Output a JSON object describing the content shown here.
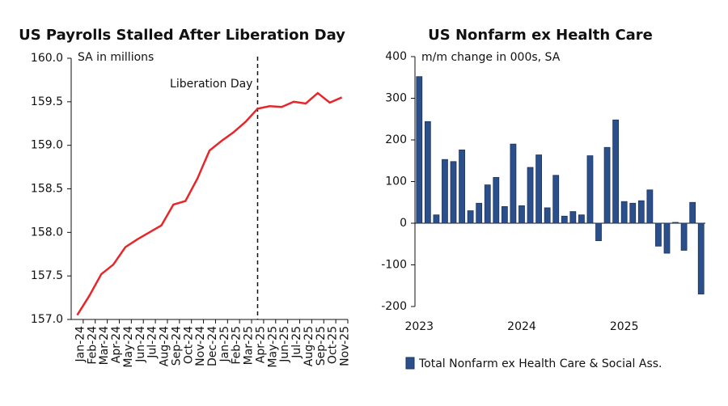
{
  "chart_data": [
    {
      "type": "line",
      "title": "US Payrolls Stalled After Liberation Day",
      "subtitle": "SA in millions",
      "categories": [
        "Jan-24",
        "Feb-24",
        "Mar-24",
        "Apr-24",
        "May-24",
        "Jun-24",
        "Jul-24",
        "Aug-24",
        "Sep-24",
        "Oct-24",
        "Nov-24",
        "Dec-24",
        "Jan-25",
        "Feb-25",
        "Mar-25",
        "Apr-25",
        "May-25",
        "Jun-25",
        "Jul-25",
        "Aug-25",
        "Sep-25",
        "Oct-25",
        "Nov-25"
      ],
      "values": [
        157.05,
        157.27,
        157.52,
        157.63,
        157.83,
        157.92,
        158.0,
        158.08,
        158.32,
        158.36,
        158.62,
        158.94,
        159.05,
        159.15,
        159.27,
        159.42,
        159.45,
        159.44,
        159.5,
        159.48,
        159.6,
        159.49,
        159.55
      ],
      "color": "#e8262a",
      "ylim": [
        157,
        160
      ],
      "yticks": [
        {
          "value": 157,
          "label": "157.0"
        },
        {
          "value": 157.5,
          "label": "157.5"
        },
        {
          "value": 158,
          "label": "158.0"
        },
        {
          "value": 158.5,
          "label": "158.5"
        },
        {
          "value": 159,
          "label": "159.0"
        },
        {
          "value": 159.5,
          "label": "159.5"
        },
        {
          "value": 160,
          "label": "160.0"
        }
      ],
      "annotation": {
        "text": "Liberation Day",
        "at": "Apr-25"
      }
    },
    {
      "type": "bar",
      "title": "US Nonfarm ex Health Care",
      "subtitle": "m/m change in 000s, SA",
      "categories": [
        "2023",
        null,
        null,
        null,
        null,
        null,
        null,
        null,
        null,
        null,
        null,
        null,
        "2024",
        null,
        null,
        null,
        null,
        null,
        null,
        null,
        null,
        null,
        null,
        null,
        "2025",
        null,
        null,
        null,
        null,
        null,
        null,
        null,
        null,
        null
      ],
      "series": [
        {
          "name": "Total Nonfarm ex Health Care & Social Ass.",
          "color": "#2b4f8a",
          "values": [
            352,
            244,
            20,
            153,
            148,
            176,
            30,
            48,
            92,
            110,
            40,
            190,
            42,
            134,
            164,
            37,
            115,
            17,
            28,
            20,
            162,
            -42,
            182,
            248,
            52,
            48,
            54,
            80,
            -55,
            -72,
            2,
            -65,
            50,
            -170
          ]
        }
      ],
      "ylim": [
        -200,
        400
      ],
      "yticks": [
        -200,
        -100,
        0,
        100,
        200,
        300,
        400
      ]
    }
  ]
}
